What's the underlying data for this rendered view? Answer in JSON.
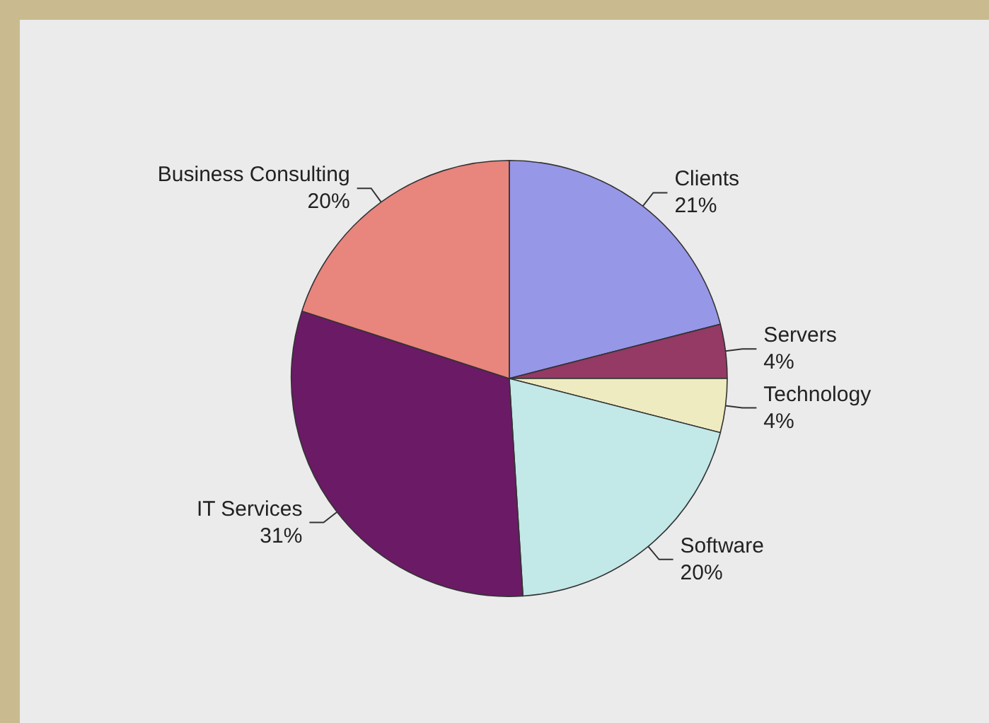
{
  "chart_data": {
    "type": "pie",
    "categories": [
      "Clients",
      "Servers",
      "Technology",
      "Software",
      "IT Services",
      "Business Consulting"
    ],
    "values": [
      21,
      4,
      4,
      20,
      31,
      20
    ],
    "colors": [
      "#9797e8",
      "#943a64",
      "#efebc0",
      "#c2e8e8",
      "#6b1a66",
      "#e8857d"
    ],
    "value_labels": [
      "21%",
      "4%",
      "4%",
      "20%",
      "31%",
      "20%"
    ],
    "legend": false
  }
}
